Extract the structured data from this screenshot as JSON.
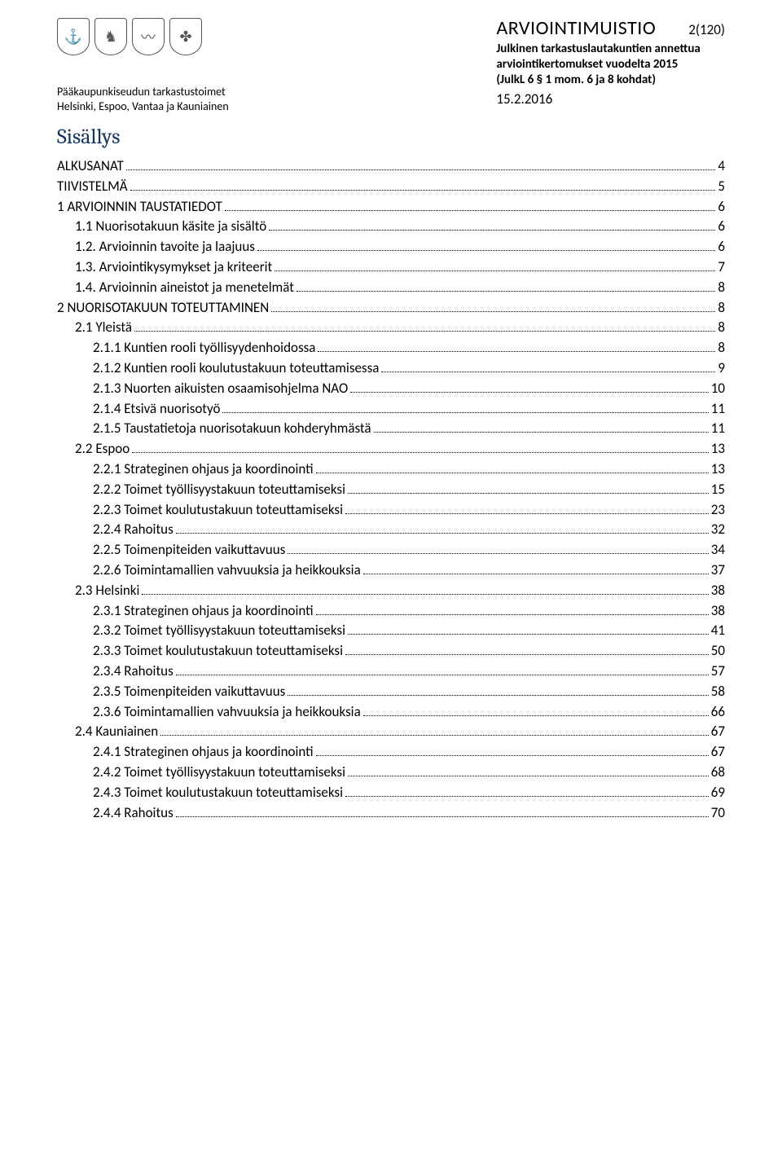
{
  "header": {
    "org_line1": "Pääkaupunkiseudun tarkastustoimet",
    "org_line2": "Helsinki, Espoo, Vantaa ja Kauniainen",
    "doc_title": "ARVIOINTIMUISTIO",
    "page_number": "2(120)",
    "sub_line1": "Julkinen tarkastuslautakuntien annettua",
    "sub_line2": "arviointikertomukset vuodelta 2015",
    "sub_line3": "(JulkL 6 § 1 mom. 6 ja 8 kohdat)",
    "date": "15.2.2016"
  },
  "sisallys_title": "Sisällys",
  "toc": [
    {
      "label": "ALKUSANAT",
      "page": "4",
      "level": 0
    },
    {
      "label": "TIIVISTELMÄ",
      "page": "5",
      "level": 0
    },
    {
      "label": "1 ARVIOINNIN TAUSTATIEDOT",
      "page": "6",
      "level": 0
    },
    {
      "label": "1.1 Nuorisotakuun käsite ja sisältö",
      "page": "6",
      "level": 1
    },
    {
      "label": "1.2. Arvioinnin tavoite ja laajuus",
      "page": "6",
      "level": 1
    },
    {
      "label": "1.3. Arviointikysymykset ja kriteerit",
      "page": "7",
      "level": 1
    },
    {
      "label": "1.4. Arvioinnin aineistot ja menetelmät",
      "page": "8",
      "level": 1
    },
    {
      "label": "2 NUORISOTAKUUN TOTEUTTAMINEN",
      "page": "8",
      "level": 0
    },
    {
      "label": "2.1 Yleistä",
      "page": "8",
      "level": 1
    },
    {
      "label": "2.1.1 Kuntien rooli työllisyydenhoidossa",
      "page": "8",
      "level": 2
    },
    {
      "label": "2.1.2 Kuntien rooli koulutustakuun toteuttamisessa",
      "page": "9",
      "level": 2
    },
    {
      "label": "2.1.3 Nuorten aikuisten osaamisohjelma NAO",
      "page": "10",
      "level": 2
    },
    {
      "label": "2.1.4 Etsivä nuorisotyö",
      "page": "11",
      "level": 2
    },
    {
      "label": "2.1.5 Taustatietoja nuorisotakuun kohderyhmästä",
      "page": "11",
      "level": 2
    },
    {
      "label": "2.2 Espoo",
      "page": "13",
      "level": 1
    },
    {
      "label": "2.2.1 Strateginen ohjaus ja koordinointi",
      "page": "13",
      "level": 2
    },
    {
      "label": "2.2.2 Toimet työllisyystakuun toteuttamiseksi",
      "page": "15",
      "level": 2
    },
    {
      "label": "2.2.3 Toimet koulutustakuun toteuttamiseksi",
      "page": "23",
      "level": 2
    },
    {
      "label": "2.2.4 Rahoitus",
      "page": "32",
      "level": 2
    },
    {
      "label": "2.2.5 Toimenpiteiden vaikuttavuus",
      "page": "34",
      "level": 2
    },
    {
      "label": "2.2.6 Toimintamallien vahvuuksia ja heikkouksia",
      "page": "37",
      "level": 2
    },
    {
      "label": "2.3 Helsinki",
      "page": "38",
      "level": 1
    },
    {
      "label": "2.3.1 Strateginen ohjaus ja koordinointi",
      "page": "38",
      "level": 2
    },
    {
      "label": "2.3.2 Toimet työllisyystakuun toteuttamiseksi",
      "page": "41",
      "level": 2
    },
    {
      "label": "2.3.3 Toimet koulutustakuun toteuttamiseksi",
      "page": "50",
      "level": 2
    },
    {
      "label": "2.3.4 Rahoitus",
      "page": "57",
      "level": 2
    },
    {
      "label": "2.3.5 Toimenpiteiden vaikuttavuus",
      "page": "58",
      "level": 2
    },
    {
      "label": "2.3.6 Toimintamallien vahvuuksia ja heikkouksia",
      "page": "66",
      "level": 2
    },
    {
      "label": "2.4 Kauniainen",
      "page": "67",
      "level": 1
    },
    {
      "label": "2.4.1 Strateginen ohjaus ja koordinointi",
      "page": "67",
      "level": 2
    },
    {
      "label": "2.4.2 Toimet työllisyystakuun toteuttamiseksi",
      "page": "68",
      "level": 2
    },
    {
      "label": "2.4.3 Toimet koulutustakuun toteuttamiseksi",
      "page": "69",
      "level": 2
    },
    {
      "label": "2.4.4 Rahoitus",
      "page": "70",
      "level": 2
    }
  ]
}
